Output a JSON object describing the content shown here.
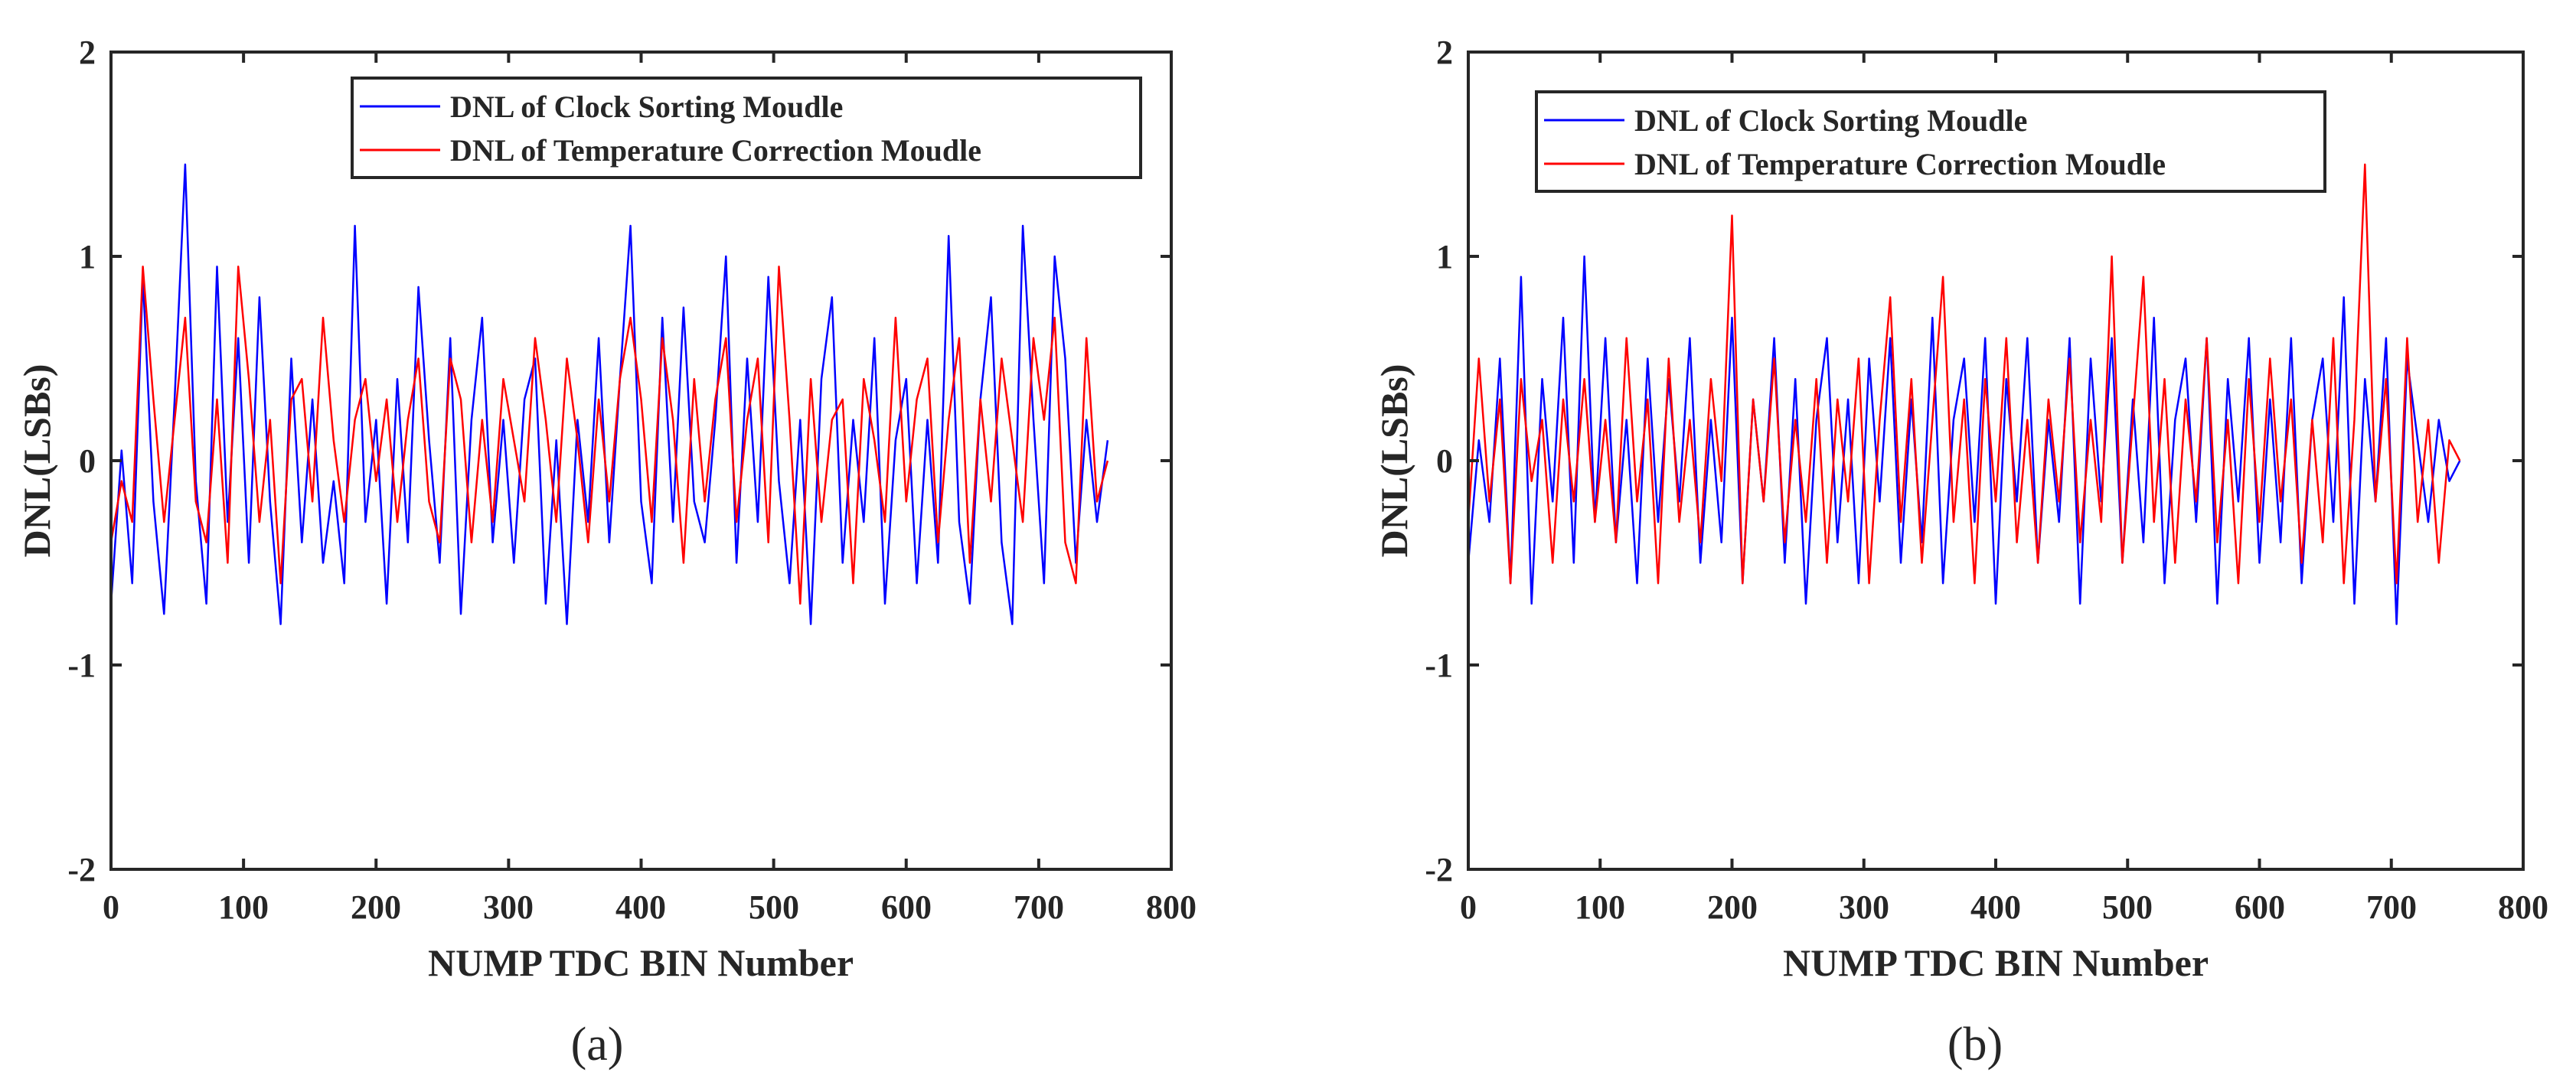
{
  "figure": {
    "panels_count": 2
  },
  "chart_data": [
    {
      "type": "line",
      "panel_label": "(a)",
      "title": "",
      "xlabel": "NUMP TDC BIN Number",
      "ylabel": "DNL(LSBs)",
      "xlim": [
        0,
        800
      ],
      "ylim": [
        -2,
        2
      ],
      "xticks": [
        "0",
        "100",
        "200",
        "300",
        "400",
        "500",
        "600",
        "700",
        "800"
      ],
      "yticks": [
        "2",
        "1",
        "0",
        "-1",
        "-2"
      ],
      "grid": false,
      "legend_position": "top-right",
      "series": [
        {
          "name": "DNL of Clock Sorting Moudle",
          "color": "#0000ff",
          "x_start": 0,
          "x_step": 8,
          "values": [
            -0.7,
            0.05,
            -0.6,
            0.9,
            -0.2,
            -0.75,
            0.3,
            1.45,
            -0.1,
            -0.7,
            0.95,
            -0.3,
            0.6,
            -0.5,
            0.8,
            -0.2,
            -0.8,
            0.5,
            -0.4,
            0.3,
            -0.5,
            -0.1,
            -0.6,
            1.15,
            -0.3,
            0.2,
            -0.7,
            0.4,
            -0.4,
            0.85,
            0.1,
            -0.5,
            0.6,
            -0.75,
            0.2,
            0.7,
            -0.4,
            0.2,
            -0.5,
            0.3,
            0.5,
            -0.7,
            0.1,
            -0.8,
            0.2,
            -0.3,
            0.6,
            -0.4,
            0.4,
            1.15,
            -0.2,
            -0.6,
            0.7,
            -0.3,
            0.75,
            -0.2,
            -0.4,
            0.2,
            1.0,
            -0.5,
            0.5,
            -0.3,
            0.9,
            -0.1,
            -0.6,
            0.2,
            -0.8,
            0.4,
            0.8,
            -0.5,
            0.2,
            -0.3,
            0.6,
            -0.7,
            0.1,
            0.4,
            -0.6,
            0.2,
            -0.5,
            1.1,
            -0.3,
            -0.7,
            0.3,
            0.8,
            -0.4,
            -0.8,
            1.15,
            0.2,
            -0.6,
            1.0,
            0.5,
            -0.5,
            0.2,
            -0.3,
            0.1
          ]
        },
        {
          "name": "DNL of Temperature Correction Moudle",
          "color": "#ff0000",
          "x_start": 0,
          "x_step": 8,
          "values": [
            -0.4,
            -0.1,
            -0.3,
            0.95,
            0.3,
            -0.3,
            0.2,
            0.7,
            -0.2,
            -0.4,
            0.3,
            -0.5,
            0.95,
            0.4,
            -0.3,
            0.2,
            -0.6,
            0.3,
            0.4,
            -0.2,
            0.7,
            0.1,
            -0.3,
            0.2,
            0.4,
            -0.1,
            0.3,
            -0.3,
            0.2,
            0.5,
            -0.2,
            -0.4,
            0.5,
            0.3,
            -0.4,
            0.2,
            -0.3,
            0.4,
            0.1,
            -0.2,
            0.6,
            0.2,
            -0.3,
            0.5,
            0.1,
            -0.4,
            0.3,
            -0.2,
            0.4,
            0.7,
            0.3,
            -0.3,
            0.6,
            0.2,
            -0.5,
            0.4,
            -0.2,
            0.3,
            0.6,
            -0.3,
            0.2,
            0.5,
            -0.4,
            0.95,
            0.2,
            -0.7,
            0.4,
            -0.3,
            0.2,
            0.3,
            -0.6,
            0.4,
            0.1,
            -0.3,
            0.7,
            -0.2,
            0.3,
            0.5,
            -0.4,
            0.2,
            0.6,
            -0.5,
            0.3,
            -0.2,
            0.5,
            0.1,
            -0.3,
            0.6,
            0.2,
            0.7,
            -0.4,
            -0.6,
            0.6,
            -0.2,
            0.0
          ]
        }
      ]
    },
    {
      "type": "line",
      "panel_label": "(b)",
      "title": "",
      "xlabel": "NUMP TDC BIN Number",
      "ylabel": "DNL(LSBs)",
      "xlim": [
        0,
        800
      ],
      "ylim": [
        -2,
        2
      ],
      "xticks": [
        "0",
        "100",
        "200",
        "300",
        "400",
        "500",
        "600",
        "700",
        "800"
      ],
      "yticks": [
        "2",
        "1",
        "0",
        "-1",
        "-2"
      ],
      "grid": false,
      "legend_position": "top-left",
      "series": [
        {
          "name": "DNL of Clock Sorting Moudle",
          "color": "#0000ff",
          "x_start": 0,
          "x_step": 8,
          "values": [
            -0.5,
            0.1,
            -0.3,
            0.5,
            -0.6,
            0.9,
            -0.7,
            0.4,
            -0.2,
            0.7,
            -0.5,
            1.0,
            -0.3,
            0.6,
            -0.4,
            0.2,
            -0.6,
            0.5,
            -0.3,
            0.4,
            -0.2,
            0.6,
            -0.5,
            0.2,
            -0.4,
            0.7,
            -0.6,
            0.3,
            -0.2,
            0.6,
            -0.5,
            0.4,
            -0.7,
            0.2,
            0.6,
            -0.4,
            0.3,
            -0.6,
            0.5,
            -0.2,
            0.6,
            -0.5,
            0.3,
            -0.4,
            0.7,
            -0.6,
            0.2,
            0.5,
            -0.3,
            0.6,
            -0.7,
            0.4,
            -0.2,
            0.6,
            -0.5,
            0.2,
            -0.3,
            0.6,
            -0.7,
            0.5,
            -0.2,
            0.6,
            -0.5,
            0.3,
            -0.4,
            0.7,
            -0.6,
            0.2,
            0.5,
            -0.3,
            0.6,
            -0.7,
            0.4,
            -0.2,
            0.6,
            -0.5,
            0.3,
            -0.4,
            0.6,
            -0.6,
            0.2,
            0.5,
            -0.3,
            0.8,
            -0.7,
            0.4,
            -0.2,
            0.6,
            -0.8,
            0.5,
            0.1,
            -0.3,
            0.2,
            -0.1,
            0.0
          ]
        },
        {
          "name": "DNL of Temperature Correction Moudle",
          "color": "#ff0000",
          "x_start": 0,
          "x_step": 8,
          "values": [
            -0.3,
            0.5,
            -0.2,
            0.3,
            -0.6,
            0.4,
            -0.1,
            0.2,
            -0.5,
            0.3,
            -0.2,
            0.4,
            -0.3,
            0.2,
            -0.4,
            0.6,
            -0.2,
            0.3,
            -0.6,
            0.5,
            -0.3,
            0.2,
            -0.4,
            0.4,
            -0.1,
            1.2,
            -0.6,
            0.3,
            -0.2,
            0.5,
            -0.4,
            0.2,
            -0.3,
            0.4,
            -0.5,
            0.3,
            -0.2,
            0.5,
            -0.6,
            0.2,
            0.8,
            -0.3,
            0.4,
            -0.5,
            0.2,
            0.9,
            -0.3,
            0.3,
            -0.6,
            0.4,
            -0.2,
            0.6,
            -0.4,
            0.2,
            -0.5,
            0.3,
            -0.2,
            0.5,
            -0.4,
            0.2,
            -0.3,
            1.0,
            -0.5,
            0.2,
            0.9,
            -0.3,
            0.4,
            -0.5,
            0.3,
            -0.2,
            0.6,
            -0.4,
            0.2,
            -0.6,
            0.4,
            -0.3,
            0.5,
            -0.2,
            0.3,
            -0.5,
            0.2,
            -0.4,
            0.6,
            -0.6,
            0.2,
            1.45,
            -0.2,
            0.4,
            -0.6,
            0.6,
            -0.3,
            0.2,
            -0.5,
            0.1,
            0.0
          ]
        }
      ]
    }
  ]
}
